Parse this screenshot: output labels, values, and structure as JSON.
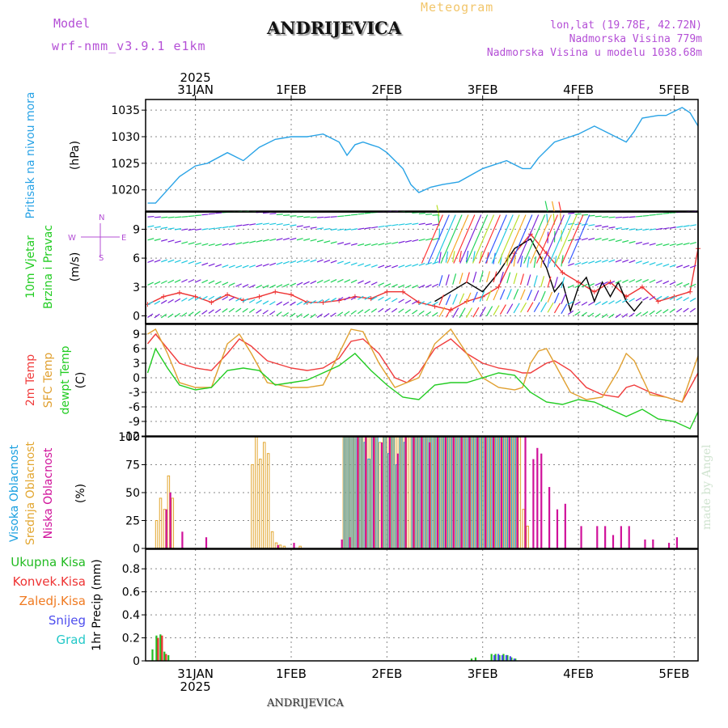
{
  "header": {
    "model_label": "Model",
    "model_run": "wrf-nmm_v3.9.1 e1km",
    "title": "ANDRIJEVICA",
    "meteogram": "Meteogram",
    "lonlat": "lon,lat (19.78E, 42.72N)",
    "elevation": "Nadmorska Visina 779m",
    "model_elevation": "Nadmorska Visina u modelu 1038.68m"
  },
  "footer": {
    "location": "ANDRIJEVICA",
    "made_by": "made by Angel"
  },
  "time_axis": {
    "year": "2025",
    "days": [
      "31JAN",
      "1FEB",
      "2FEB",
      "3FEB",
      "4FEB",
      "5FEB"
    ],
    "range_hours": [
      -12.5,
      126
    ]
  },
  "colors": {
    "pressure": "#29a3e6",
    "temp2m": "#f03c3c",
    "sfc": "#e0a030",
    "dewpt": "#22cc22",
    "high": "#1aa0e0",
    "mid": "#e2a630",
    "low": "#d0119a",
    "total": "#22bb22",
    "conv": "#ee3333",
    "frz": "#f07a20",
    "snow": "#4d4dee",
    "hail": "#22c8c8",
    "wind_speed": "#000000",
    "gust": "#ee3333",
    "axis_label": "#b44fd6"
  },
  "chart_data": [
    {
      "type": "line",
      "panel": "pressure",
      "ylabel_left": "Pritisak na nivou mora",
      "ylabel_unit": "(hPa)",
      "yticks": [
        "1020",
        "1025",
        "1030",
        "1035"
      ],
      "ylim": [
        1016,
        1037
      ],
      "series": [
        {
          "color_key": "pressure",
          "x": [
            -12,
            -10,
            -7,
            -4,
            0,
            3,
            8,
            12,
            16,
            20,
            24,
            28,
            32,
            36,
            38,
            40,
            42,
            44,
            46,
            48,
            52,
            54,
            56,
            59,
            62,
            66,
            72,
            78,
            82,
            84,
            86,
            90,
            94,
            96,
            100,
            104,
            108,
            110,
            112,
            116,
            118,
            122,
            124,
            126
          ],
          "y": [
            1017.5,
            1017.5,
            1020,
            1022.5,
            1024.5,
            1025,
            1027,
            1025.5,
            1028,
            1029.5,
            1030,
            1030,
            1030.5,
            1029,
            1026.5,
            1028.5,
            1029,
            1028.5,
            1028,
            1027,
            1024,
            1021,
            1019.5,
            1020.5,
            1021,
            1021.5,
            1024,
            1025.5,
            1024,
            1024,
            1026,
            1029,
            1030,
            1030.5,
            1032,
            1030.5,
            1029,
            1031,
            1033.5,
            1034,
            1034,
            1035.5,
            1034.5,
            1032
          ]
        }
      ]
    },
    {
      "type": "line",
      "panel": "wind",
      "ylabel_left": "10m Vjetar",
      "ylabel_left2": "Brzina i Pravac",
      "ylabel_unit": "(m/s)",
      "compass": "N",
      "compass_w": "W",
      "compass_e": "E",
      "compass_s": "S",
      "yticks": [
        "0",
        "3",
        "6",
        "9"
      ],
      "ylim": [
        -0.8,
        10.8
      ],
      "series": [
        {
          "color_key": "gust",
          "x": [
            -12,
            -8,
            -4,
            0,
            4,
            8,
            12,
            16,
            20,
            24,
            28,
            32,
            36,
            40,
            44,
            48,
            52,
            56,
            60,
            64,
            68,
            72,
            76,
            80,
            84,
            88,
            92,
            96,
            100,
            104,
            108,
            112,
            116,
            120,
            124,
            126
          ],
          "y": [
            1.2,
            2,
            2.4,
            2,
            1.4,
            2.2,
            1.6,
            2,
            2.5,
            2.2,
            1.4,
            1.4,
            1.6,
            2,
            1.8,
            2.5,
            2.5,
            1.4,
            1,
            0.6,
            1.5,
            2,
            3,
            6.5,
            8.5,
            6.5,
            4.5,
            3.5,
            2.5,
            3.5,
            2,
            3,
            1.5,
            2,
            2.5,
            7
          ]
        },
        {
          "color_key": "wind_speed",
          "x": [
            60,
            64,
            68,
            72,
            76,
            80,
            84,
            88,
            90,
            92,
            94,
            96,
            98,
            100,
            102,
            104,
            106,
            108,
            110,
            112
          ],
          "y": [
            1.5,
            2.5,
            3.5,
            2.5,
            4.5,
            7,
            8,
            5,
            2.5,
            3.5,
            0.5,
            3,
            4,
            1.5,
            3.5,
            2,
            3.5,
            1.5,
            0.5,
            1.5
          ]
        }
      ]
    },
    {
      "type": "line",
      "panel": "temperature",
      "ylabel_left": "2m Temp",
      "ylabel_left2": "SFC Temp",
      "ylabel_left3": "dewpt Temp",
      "ylabel_unit": "(C)",
      "yticks": [
        "-12",
        "-9",
        "-6",
        "-3",
        "0",
        "3",
        "6",
        "9"
      ],
      "ylim": [
        -12,
        11
      ],
      "series": [
        {
          "name_key": "2m Temp",
          "color_key": "temp2m",
          "x": [
            -12,
            -10,
            -7,
            -4,
            0,
            4,
            8,
            11,
            14,
            18,
            24,
            28,
            32,
            36,
            39,
            42,
            46,
            50,
            53,
            56,
            60,
            64,
            68,
            72,
            76,
            80,
            82,
            84,
            86,
            88,
            90,
            94,
            98,
            102,
            106,
            108,
            110,
            114,
            118,
            122,
            126
          ],
          "y": [
            7,
            9,
            6,
            3,
            2,
            1.5,
            5,
            8,
            6.5,
            3.5,
            2,
            1.5,
            2,
            4,
            7.5,
            8,
            5,
            0,
            -1,
            1,
            6,
            8,
            5,
            3,
            2,
            1.5,
            1,
            1,
            2,
            3,
            3.5,
            1.5,
            -2,
            -3.5,
            -4,
            -2,
            -1.5,
            -3,
            -4,
            -5,
            1
          ]
        },
        {
          "name_key": "SFC Temp",
          "color_key": "sfc",
          "x": [
            -12,
            -10,
            -7,
            -4,
            0,
            4,
            8,
            11,
            14,
            18,
            24,
            28,
            32,
            36,
            39,
            42,
            46,
            50,
            53,
            56,
            60,
            64,
            68,
            72,
            76,
            80,
            82,
            84,
            86,
            88,
            90,
            94,
            98,
            102,
            106,
            108,
            110,
            114,
            118,
            122,
            126
          ],
          "y": [
            9,
            10,
            5,
            -1,
            -2,
            -2,
            7,
            9,
            5,
            -1,
            -2,
            -2,
            -1.5,
            5,
            10,
            9.5,
            3,
            -2,
            -1,
            0,
            7,
            10,
            5,
            0,
            -2,
            -2.5,
            -2,
            3,
            5.5,
            6,
            3,
            -3,
            -4.5,
            -4,
            1.5,
            5,
            3.5,
            -3.5,
            -4,
            -5,
            4.5
          ]
        },
        {
          "name_key": "dewpt Temp",
          "color_key": "dewpt",
          "x": [
            -12,
            -10,
            -7,
            -4,
            0,
            4,
            8,
            12,
            16,
            20,
            24,
            28,
            32,
            36,
            40,
            44,
            48,
            52,
            56,
            60,
            64,
            68,
            72,
            76,
            80,
            84,
            88,
            92,
            96,
            100,
            104,
            108,
            112,
            116,
            120,
            124,
            126
          ],
          "y": [
            1,
            6,
            2,
            -1.5,
            -2.5,
            -2,
            1.5,
            2,
            1.5,
            -1.5,
            -1,
            -0.5,
            1,
            2.5,
            5,
            1.5,
            -1.5,
            -4,
            -4.5,
            -1.5,
            -1,
            -1,
            0,
            1,
            0.5,
            -3,
            -5,
            -5.5,
            -4.5,
            -5,
            -6.5,
            -8,
            -6.5,
            -8.5,
            -9,
            -10.5,
            -7
          ]
        }
      ]
    },
    {
      "type": "bar",
      "panel": "clouds",
      "ylabel_left": "Visoka Oblacnost",
      "ylabel_left2": "Srednja Oblacnost",
      "ylabel_left3": "Niska Oblacnost",
      "ylabel_unit": "(%)",
      "yticks": [
        "0",
        "25",
        "50",
        "75",
        "100"
      ],
      "ylim": [
        0,
        100
      ],
      "series": [
        {
          "name_key": "Srednja Oblacnost",
          "color_key": "mid",
          "x": [
            -10,
            -9,
            -8,
            -7,
            -6,
            14,
            15,
            16,
            17,
            18,
            19,
            20,
            21,
            22,
            26,
            37,
            38,
            39,
            40,
            41,
            42,
            43,
            44,
            45,
            46,
            47,
            48,
            49,
            50,
            51,
            52,
            53,
            54,
            55,
            56,
            57,
            58,
            59,
            60,
            61,
            62,
            63,
            64,
            65,
            66,
            67,
            68,
            69,
            70,
            71,
            72,
            73,
            74,
            75,
            76,
            77,
            78,
            79,
            80,
            81,
            82,
            83
          ],
          "y": [
            25,
            45,
            35,
            65,
            45,
            75,
            100,
            80,
            95,
            85,
            15,
            5,
            3,
            2,
            2,
            100,
            100,
            100,
            100,
            100,
            100,
            100,
            100,
            100,
            95,
            100,
            100,
            100,
            100,
            100,
            100,
            100,
            100,
            100,
            100,
            100,
            100,
            100,
            100,
            100,
            100,
            100,
            100,
            100,
            100,
            100,
            100,
            100,
            100,
            100,
            100,
            100,
            100,
            100,
            100,
            100,
            100,
            100,
            100,
            100,
            35,
            20
          ]
        },
        {
          "name_key": "Visoka Oblacnost",
          "color_key": "high",
          "x": [
            37,
            38,
            39,
            40,
            41,
            42,
            43,
            44,
            45,
            47,
            48,
            49,
            50,
            51,
            52,
            54,
            55,
            56,
            57,
            58,
            59,
            60,
            61,
            62,
            63,
            64,
            65,
            66,
            67,
            68,
            69,
            70,
            71,
            72,
            73,
            74,
            75,
            76,
            77,
            78,
            79,
            80
          ],
          "y": [
            100,
            100,
            100,
            100,
            100,
            95,
            80,
            100,
            100,
            100,
            85,
            100,
            75,
            100,
            95,
            100,
            100,
            100,
            100,
            100,
            100,
            100,
            100,
            100,
            100,
            100,
            100,
            100,
            100,
            100,
            100,
            100,
            100,
            100,
            100,
            100,
            100,
            100,
            100,
            100,
            100,
            100
          ]
        },
        {
          "name_key": "Niska Oblacnost",
          "color_key": "low",
          "x": [
            -8,
            -7,
            -4,
            2,
            20,
            24,
            36,
            38,
            40,
            42,
            44,
            46,
            48,
            50,
            52,
            54,
            56,
            58,
            60,
            62,
            64,
            66,
            68,
            70,
            72,
            74,
            76,
            78,
            80,
            82,
            84,
            85,
            86,
            88,
            90,
            92,
            96,
            100,
            102,
            104,
            106,
            108,
            112,
            114,
            118,
            120
          ],
          "y": [
            35,
            50,
            15,
            10,
            3,
            5,
            8,
            10,
            100,
            100,
            100,
            95,
            100,
            85,
            100,
            100,
            100,
            95,
            100,
            100,
            100,
            100,
            100,
            100,
            100,
            100,
            100,
            100,
            100,
            100,
            80,
            90,
            85,
            55,
            35,
            40,
            20,
            20,
            20,
            12,
            20,
            20,
            8,
            8,
            5,
            10
          ]
        }
      ]
    },
    {
      "type": "bar",
      "panel": "precip",
      "ylabel_unit": "1hr Precip (mm)",
      "legend": [
        "Ukupna Kisa",
        "Konvek.Kisa",
        "Zaledj.Kisa",
        "Snijeg",
        "Grad"
      ],
      "yticks": [
        "0",
        "0.2",
        "0.4",
        "0.6",
        "0.8"
      ],
      "ylim": [
        0,
        0.97
      ],
      "series": [
        {
          "name_key": "Ukupna Kisa",
          "color_key": "total",
          "x": [
            -11,
            -10,
            -9,
            -8,
            -7,
            69,
            70,
            74,
            75,
            76,
            77,
            78,
            79,
            80
          ],
          "y": [
            0.1,
            0.22,
            0.23,
            0.08,
            0.05,
            0.02,
            0.03,
            0.06,
            0.06,
            0.05,
            0.06,
            0.05,
            0.03,
            0.02
          ]
        },
        {
          "name_key": "Konvek.Kisa",
          "color_key": "conv",
          "x": [
            -10,
            -9,
            -8
          ],
          "y": [
            0.2,
            0.22,
            0.06
          ]
        },
        {
          "name_key": "Snijeg",
          "color_key": "snow",
          "x": [
            74,
            75,
            76,
            77,
            78,
            79
          ],
          "y": [
            0.05,
            0.06,
            0.05,
            0.05,
            0.04,
            0.02
          ]
        }
      ]
    }
  ]
}
